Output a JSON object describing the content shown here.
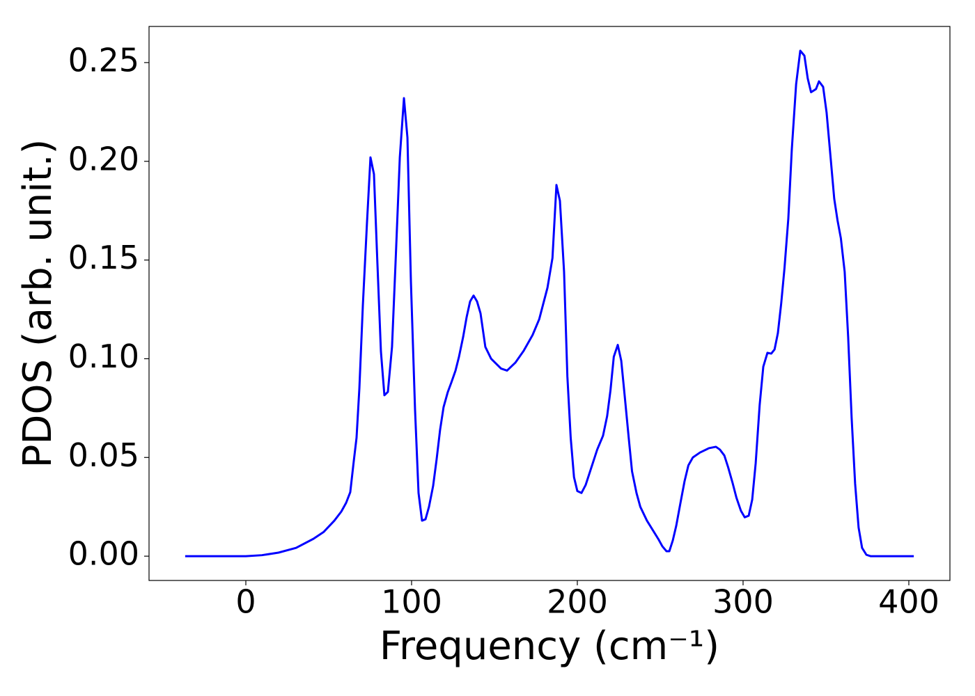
{
  "chart_data": {
    "type": "line",
    "x_label": "Frequency (cm⁻¹)",
    "y_label": "PDOS (arb. unit.)",
    "x": [
      -36.6,
      0,
      9.7,
      19.7,
      30.3,
      40.8,
      47,
      53.4,
      57.6,
      60.5,
      63,
      65.1,
      66.8,
      68.5,
      70.6,
      73.1,
      75.2,
      77.3,
      79.4,
      81.5,
      83.6,
      85.7,
      88.2,
      90.3,
      92.9,
      95.4,
      97.5,
      99.6,
      102.1,
      104.2,
      106.3,
      108.4,
      110.5,
      113,
      115.1,
      117.2,
      119.3,
      121.8,
      124,
      126.5,
      128.6,
      131.1,
      133.2,
      135.3,
      137.4,
      139.5,
      141.6,
      144.5,
      148,
      154,
      157.6,
      162.6,
      167.6,
      173,
      177,
      182,
      185,
      187.4,
      189.5,
      192,
      194,
      196,
      198,
      200,
      202.5,
      205,
      212,
      215.5,
      218,
      220,
      222,
      224.4,
      226.5,
      228.6,
      231,
      233,
      235.7,
      238,
      242,
      249,
      251.3,
      253.8,
      255.5,
      257.6,
      259.7,
      262,
      264.7,
      267,
      269.7,
      274,
      279.4,
      283.6,
      286,
      288.7,
      291,
      293.7,
      296,
      298.7,
      301,
      303.4,
      305.5,
      307.6,
      310,
      312.2,
      314.7,
      317,
      319,
      321,
      323,
      325,
      327.3,
      329.4,
      332,
      334.5,
      337,
      339,
      341,
      344,
      345.8,
      348.3,
      350.4,
      352.9,
      355,
      357,
      359,
      361.3,
      363.4,
      365.5,
      367.6,
      369.7,
      371.8,
      374.4,
      376.9,
      403
    ],
    "series": [
      {
        "color": "#0000ff",
        "values": [
          0,
          0,
          0.0005,
          0.0018,
          0.0042,
          0.0088,
          0.0123,
          0.018,
          0.0226,
          0.027,
          0.0324,
          0.048,
          0.06,
          0.085,
          0.127,
          0.169,
          0.202,
          0.1935,
          0.148,
          0.1037,
          0.0815,
          0.0832,
          0.106,
          0.148,
          0.202,
          0.232,
          0.212,
          0.139,
          0.074,
          0.032,
          0.018,
          0.0187,
          0.025,
          0.0356,
          0.049,
          0.064,
          0.0755,
          0.083,
          0.088,
          0.094,
          0.101,
          0.111,
          0.121,
          0.129,
          0.132,
          0.129,
          0.123,
          0.106,
          0.1,
          0.095,
          0.094,
          0.098,
          0.104,
          0.112,
          0.12,
          0.136,
          0.151,
          0.188,
          0.18,
          0.144,
          0.091,
          0.06,
          0.04,
          0.033,
          0.032,
          0.036,
          0.054,
          0.061,
          0.071,
          0.084,
          0.101,
          0.107,
          0.099,
          0.081,
          0.06,
          0.043,
          0.032,
          0.025,
          0.018,
          0.0085,
          0.005,
          0.0025,
          0.0025,
          0.008,
          0.0155,
          0.026,
          0.038,
          0.046,
          0.05,
          0.0525,
          0.0547,
          0.0554,
          0.054,
          0.051,
          0.045,
          0.037,
          0.0296,
          0.023,
          0.0197,
          0.0205,
          0.0286,
          0.047,
          0.0765,
          0.096,
          0.103,
          0.1026,
          0.1047,
          0.113,
          0.128,
          0.146,
          0.171,
          0.206,
          0.239,
          0.256,
          0.2535,
          0.242,
          0.235,
          0.2366,
          0.2405,
          0.2377,
          0.2246,
          0.201,
          0.181,
          0.17,
          0.161,
          0.144,
          0.111,
          0.07,
          0.0367,
          0.0145,
          0.0042,
          0.0007,
          0,
          0
        ]
      }
    ],
    "xlim": [
      -58.4,
      424.8
    ],
    "ylim": [
      -0.0123,
      0.2683
    ],
    "xticks": [
      0,
      100,
      200,
      300,
      400
    ],
    "yticks": [
      {
        "value": 0,
        "label": "0.00"
      },
      {
        "value": 0.05,
        "label": "0.05"
      },
      {
        "value": 0.1,
        "label": "0.10"
      },
      {
        "value": 0.15,
        "label": "0.15"
      },
      {
        "value": 0.2,
        "label": "0.20"
      },
      {
        "value": 0.25,
        "label": "0.25"
      }
    ],
    "grid": false
  }
}
